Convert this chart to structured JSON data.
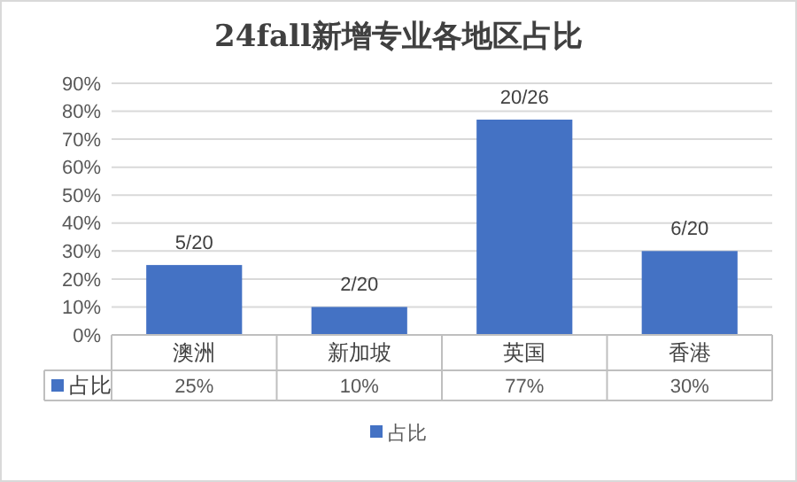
{
  "chart_data": {
    "type": "bar",
    "title": "24fall新增专业各地区占比",
    "categories": [
      "澳洲",
      "新加坡",
      "英国",
      "香港"
    ],
    "series": [
      {
        "name": "占比",
        "color": "#4472c4",
        "values": [
          25,
          10,
          77,
          30
        ],
        "value_labels": [
          "5/20",
          "2/20",
          "20/26",
          "6/20"
        ]
      }
    ],
    "ylim": [
      0,
      90
    ],
    "yticks": [
      {
        "value": 0,
        "label": "0%"
      },
      {
        "value": 10,
        "label": "10%"
      },
      {
        "value": 20,
        "label": "20%"
      },
      {
        "value": 30,
        "label": "30%"
      },
      {
        "value": 40,
        "label": "40%"
      },
      {
        "value": 50,
        "label": "50%"
      },
      {
        "value": 60,
        "label": "60%"
      },
      {
        "value": 70,
        "label": "70%"
      },
      {
        "value": 80,
        "label": "80%"
      },
      {
        "value": 90,
        "label": "90%"
      }
    ],
    "annotations": [
      "25%",
      "10%",
      "77%",
      "30%"
    ],
    "grid": "y",
    "legend": "bottom"
  }
}
